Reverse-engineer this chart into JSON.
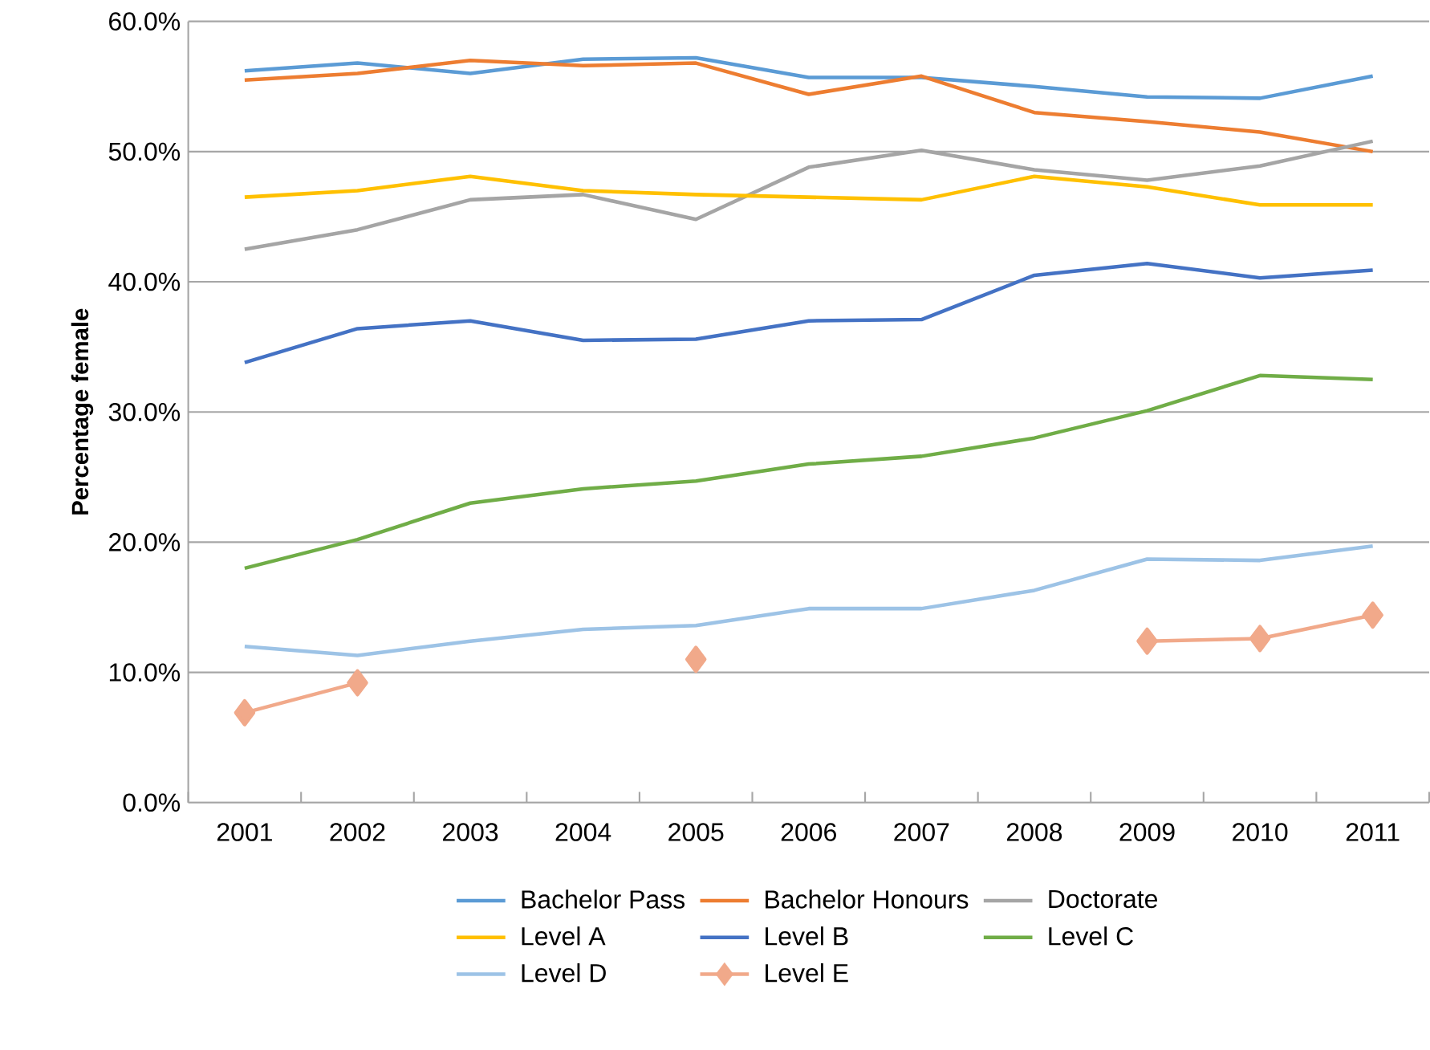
{
  "chart_data": {
    "type": "line",
    "ylabel": "Percentage female",
    "categories": [
      "2001",
      "2002",
      "2003",
      "2004",
      "2005",
      "2006",
      "2007",
      "2008",
      "2009",
      "2010",
      "2011"
    ],
    "ylim": [
      0,
      60
    ],
    "yticks": [
      {
        "value": 0,
        "label": "0.0%"
      },
      {
        "value": 10,
        "label": "10.0%"
      },
      {
        "value": 20,
        "label": "20.0%"
      },
      {
        "value": 30,
        "label": "30.0%"
      },
      {
        "value": 40,
        "label": "40.0%"
      },
      {
        "value": 50,
        "label": "50.0%"
      },
      {
        "value": 60,
        "label": "60.0%"
      }
    ],
    "grid": "y",
    "legend": "bottom",
    "marker": "none",
    "line_style": "solid",
    "series": [
      {
        "name": "Bachelor Pass",
        "color": "#5b9bd5",
        "values": [
          56.2,
          56.8,
          56.0,
          57.1,
          57.2,
          55.7,
          55.7,
          55.0,
          54.2,
          54.1,
          55.8
        ]
      },
      {
        "name": "Bachelor Honours",
        "color": "#ed7d31",
        "values": [
          55.5,
          56.0,
          57.0,
          56.6,
          56.8,
          54.4,
          55.8,
          53.0,
          52.3,
          51.5,
          50.0
        ]
      },
      {
        "name": "Doctorate",
        "color": "#a5a5a5",
        "values": [
          42.5,
          44.0,
          46.3,
          46.7,
          44.8,
          48.8,
          50.1,
          48.6,
          47.8,
          48.9,
          50.8
        ]
      },
      {
        "name": "Level A",
        "color": "#ffc000",
        "values": [
          46.5,
          47.0,
          48.1,
          47.0,
          46.7,
          46.5,
          46.3,
          48.1,
          47.3,
          45.9,
          45.9
        ]
      },
      {
        "name": "Level B",
        "color": "#4472c4",
        "values": [
          33.8,
          36.4,
          37.0,
          35.5,
          35.6,
          37.0,
          37.1,
          40.5,
          41.4,
          40.3,
          40.9
        ]
      },
      {
        "name": "Level C",
        "color": "#70ad47",
        "values": [
          18.0,
          20.2,
          23.0,
          24.1,
          24.7,
          26.0,
          26.6,
          28.0,
          30.1,
          32.8,
          32.5
        ]
      },
      {
        "name": "Level D",
        "color": "#9dc3e6",
        "values": [
          12.0,
          11.3,
          12.4,
          13.3,
          13.6,
          14.9,
          14.9,
          16.3,
          18.7,
          18.6,
          19.7
        ]
      },
      {
        "name": "Level E",
        "color": "#f1a98a",
        "marker": "diamond",
        "values": [
          6.9,
          9.2,
          null,
          null,
          11.0,
          null,
          null,
          null,
          12.4,
          12.6,
          14.4
        ]
      }
    ]
  }
}
